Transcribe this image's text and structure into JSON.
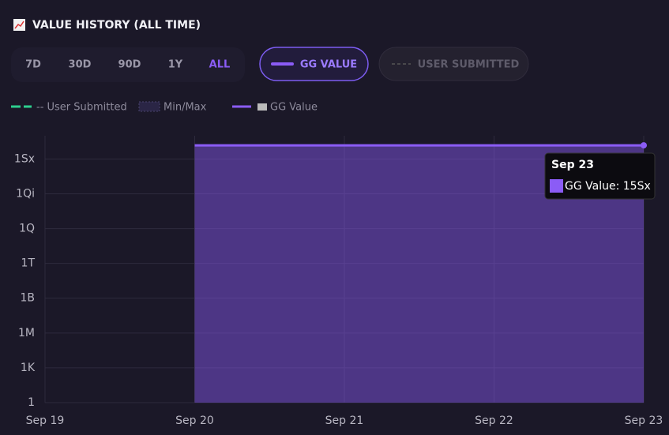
{
  "header": {
    "title": "VALUE HISTORY (ALL TIME)"
  },
  "ranges": [
    "7D",
    "30D",
    "90D",
    "1Y",
    "ALL"
  ],
  "toggles": [
    "GG VALUE",
    "USER SUBMITTED"
  ],
  "legend": [
    "-- User Submitted",
    "Min/Max",
    "GG Value"
  ],
  "tooltip": {
    "title": "Sep 23",
    "text": "GG Value: 15Sx"
  },
  "chart_data": {
    "type": "area",
    "log_y": true,
    "grid": true,
    "categories": [
      "Sep 19",
      "Sep 20",
      "Sep 21",
      "Sep 22",
      "Sep 23"
    ],
    "series": [
      {
        "name": "GG Value",
        "color": "#8b5cf6",
        "values": [
          null,
          15000000000000000000000,
          15000000000000000000000,
          15000000000000000000000,
          15000000000000000000000
        ]
      }
    ],
    "ylim": [
      1,
      100000000000000000000000
    ],
    "yticks": [
      1,
      {
        "value": 1000,
        "label": "1K"
      },
      {
        "value": 1000000,
        "label": "1M"
      },
      {
        "value": 1000000000,
        "label": "1B"
      },
      {
        "value": 1000000000000,
        "label": "1T"
      },
      {
        "value": 1000000000000000,
        "label": "1Q"
      },
      {
        "value": 1000000000000000000,
        "label": "1Qi"
      },
      {
        "value": 1000000000000000000000,
        "label": "1Sx"
      }
    ]
  }
}
